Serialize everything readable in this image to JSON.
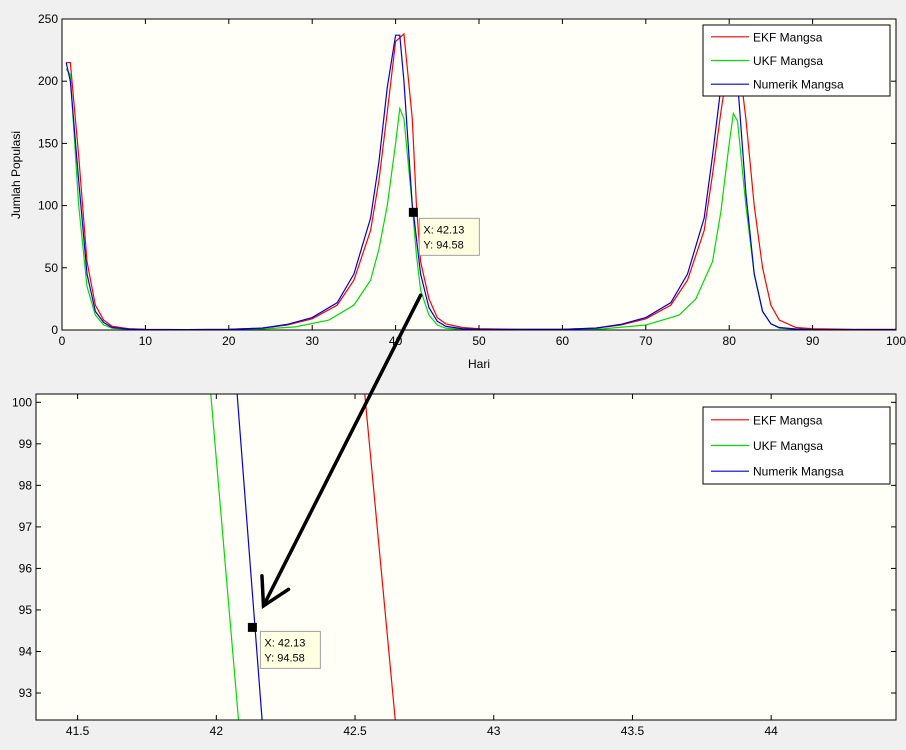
{
  "chart_data": [
    {
      "type": "line",
      "title": "",
      "xlabel": "Hari",
      "ylabel": "Jumlah Populasi",
      "xlim": [
        0,
        100
      ],
      "ylim": [
        0,
        250
      ],
      "xticks": [
        0,
        10,
        20,
        30,
        40,
        50,
        60,
        70,
        80,
        90,
        100
      ],
      "yticks": [
        0,
        50,
        100,
        150,
        200,
        250
      ],
      "xtick_labels": [
        "0",
        "10",
        "20",
        "30",
        "40",
        "50",
        "60",
        "70",
        "80",
        "90",
        "100"
      ],
      "ytick_labels": [
        "0",
        "50",
        "100",
        "150",
        "200",
        "250"
      ],
      "grid": false,
      "legend_position": "top-right",
      "series": [
        {
          "name": "EKF Mangsa",
          "color": "#ff0000",
          "x": [
            0.5,
            1,
            2,
            3,
            4,
            5,
            6,
            8,
            10,
            15,
            20,
            24,
            27,
            30,
            33,
            35,
            37,
            38,
            39,
            40,
            41,
            42,
            42.5,
            43,
            44,
            45,
            46,
            48,
            50,
            55,
            60,
            64,
            67,
            70,
            73,
            75,
            77,
            78,
            79,
            80,
            81,
            82,
            83,
            84,
            85,
            86,
            88,
            90,
            95,
            100
          ],
          "y": [
            215,
            215,
            140,
            55,
            20,
            8,
            3,
            1,
            0.5,
            0.3,
            0.5,
            1.5,
            4,
            9,
            20,
            40,
            80,
            120,
            175,
            232,
            238,
            170,
            100,
            55,
            25,
            10,
            5,
            2,
            1,
            0.5,
            0.5,
            1.5,
            4,
            9,
            20,
            40,
            80,
            125,
            175,
            220,
            225,
            170,
            100,
            50,
            20,
            8,
            2,
            1,
            0.5,
            0.5
          ]
        },
        {
          "name": "UKF Mangsa",
          "color": "#00dd00",
          "x": [
            0.5,
            1,
            2,
            3,
            4,
            5,
            6,
            8,
            10,
            15,
            20,
            24,
            28,
            32,
            35,
            37,
            38,
            39,
            40,
            40.5,
            41,
            42,
            42.5,
            43,
            44,
            45,
            46,
            48,
            50,
            55,
            60,
            65,
            70,
            74,
            76,
            78,
            79,
            80,
            80.5,
            81,
            82,
            83,
            84,
            85,
            86,
            88,
            90,
            95,
            100
          ],
          "y": [
            210,
            205,
            100,
            35,
            12,
            4,
            1.5,
            0.5,
            0.3,
            0.2,
            0.3,
            0.8,
            2.5,
            8,
            20,
            40,
            65,
            100,
            150,
            178,
            170,
            100,
            60,
            32,
            12,
            4,
            1.5,
            0.5,
            0.3,
            0.2,
            0.3,
            1,
            4,
            12,
            25,
            55,
            95,
            150,
            174,
            168,
            100,
            45,
            15,
            5,
            1.5,
            0.5,
            0.3,
            0.2,
            0.2
          ]
        },
        {
          "name": "Numerik Mangsa",
          "color": "#0000dd",
          "x": [
            0.5,
            1,
            2,
            3,
            4,
            5,
            6,
            8,
            10,
            15,
            20,
            24,
            27,
            30,
            33,
            35,
            37,
            38,
            39,
            40,
            40.5,
            41,
            42,
            42.13,
            43,
            44,
            45,
            46,
            48,
            50,
            55,
            60,
            64,
            67,
            70,
            73,
            75,
            77,
            78,
            79,
            80,
            80.5,
            81,
            82,
            83,
            84,
            85,
            86,
            88,
            90,
            95,
            100
          ],
          "y": [
            215,
            200,
            120,
            45,
            15,
            6,
            2,
            0.8,
            0.4,
            0.3,
            0.5,
            1.5,
            4.5,
            10,
            22,
            45,
            90,
            135,
            195,
            237,
            237,
            200,
            100,
            94.58,
            45,
            18,
            7,
            3,
            1,
            0.5,
            0.5,
            0.5,
            1.5,
            4.5,
            10,
            22,
            45,
            90,
            140,
            195,
            240,
            242,
            200,
            110,
            45,
            15,
            5,
            2,
            0.8,
            0.4,
            0.3,
            0.3
          ]
        }
      ],
      "annotations": [
        {
          "type": "datatip",
          "x": 42.13,
          "y": 94.58,
          "line1": "X: 42.13",
          "line2": "Y: 94.58"
        }
      ]
    },
    {
      "type": "line",
      "title": "",
      "xlabel": "",
      "ylabel": "",
      "xlim": [
        41.35,
        44.45
      ],
      "ylim": [
        92.35,
        100.2
      ],
      "xticks": [
        41.5,
        42,
        42.5,
        43,
        43.5,
        44
      ],
      "yticks": [
        93,
        94,
        95,
        96,
        97,
        98,
        99,
        100
      ],
      "xtick_labels": [
        "41.5",
        "42",
        "42.5",
        "43",
        "43.5",
        "44"
      ],
      "ytick_labels": [
        "93",
        "94",
        "95",
        "96",
        "97",
        "98",
        "99",
        "100"
      ],
      "grid": false,
      "legend_position": "top-right",
      "series": [
        {
          "name": "EKF Mangsa",
          "color": "#ff0000",
          "x": [
            42.535,
            42.645
          ],
          "y": [
            100.2,
            92.35
          ]
        },
        {
          "name": "UKF Mangsa",
          "color": "#00dd00",
          "x": [
            41.98,
            42.08
          ],
          "y": [
            100.2,
            92.35
          ]
        },
        {
          "name": "Numerik Mangsa",
          "color": "#0000dd",
          "x": [
            42.075,
            42.165
          ],
          "y": [
            100.2,
            92.35
          ]
        }
      ],
      "annotations": [
        {
          "type": "datatip",
          "x": 42.13,
          "y": 94.58,
          "line1": "X: 42.13",
          "line2": "Y: 94.58"
        }
      ]
    }
  ],
  "zoom_arrow": {
    "from": {
      "chart": 0,
      "x": 43.0,
      "y": 28
    },
    "to": {
      "chart": 1,
      "x": 42.17,
      "y": 95.1
    }
  }
}
